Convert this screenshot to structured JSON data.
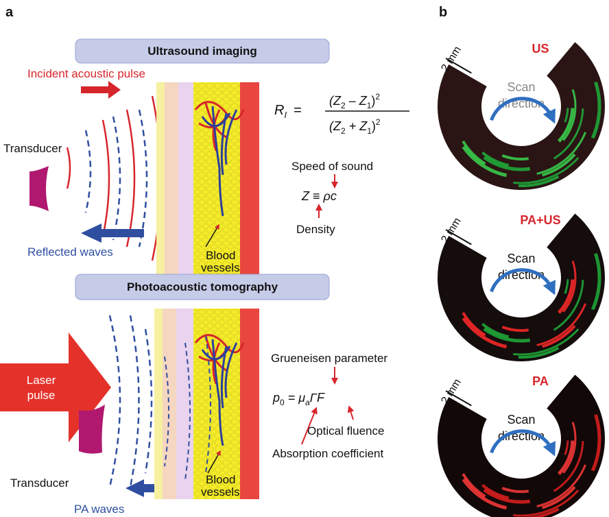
{
  "panel_a": {
    "label": "a",
    "ultrasound": {
      "title": "Ultrasound imaging",
      "incident": "Incident acoustic pulse",
      "transducer": "Transducer",
      "reflected": "Reflected waves",
      "vessels": [
        "Blood",
        "vessels"
      ],
      "reflection_formula": {
        "lhs": "R",
        "lhs_sub": "I",
        "eq": "=",
        "num": [
          "(Z",
          "2",
          " – Z",
          "1",
          ")",
          "2"
        ],
        "den": [
          "(Z",
          "2",
          " + Z",
          "1",
          ")",
          "2"
        ]
      },
      "speed_of_sound": "Speed of sound",
      "impedance_formula": "Z ≡ ρc",
      "density": "Density"
    },
    "photoacoustic": {
      "title": "Photoacoustic tomography",
      "laser": [
        "Laser",
        "pulse"
      ],
      "transducer": "Transducer",
      "pa_waves": "PA waves",
      "vessels": [
        "Blood",
        "vessels"
      ],
      "grueneisen": "Grueneisen parameter",
      "pressure_formula": [
        "p",
        "0",
        " = μ",
        "a",
        "ΓF"
      ],
      "optical_fluence": "Optical fluence",
      "absorption": "Absorption coefficient"
    }
  },
  "panel_b": {
    "label": "b",
    "images": [
      {
        "mode": "US",
        "scale": "2 mm",
        "scan": [
          "Scan",
          "direction"
        ]
      },
      {
        "mode": "PA+US",
        "scale": "2 mm",
        "scan": [
          "Scan",
          "direction"
        ]
      },
      {
        "mode": "PA",
        "scale": "2 mm",
        "scan": [
          "Scan",
          "direction"
        ]
      }
    ]
  }
}
